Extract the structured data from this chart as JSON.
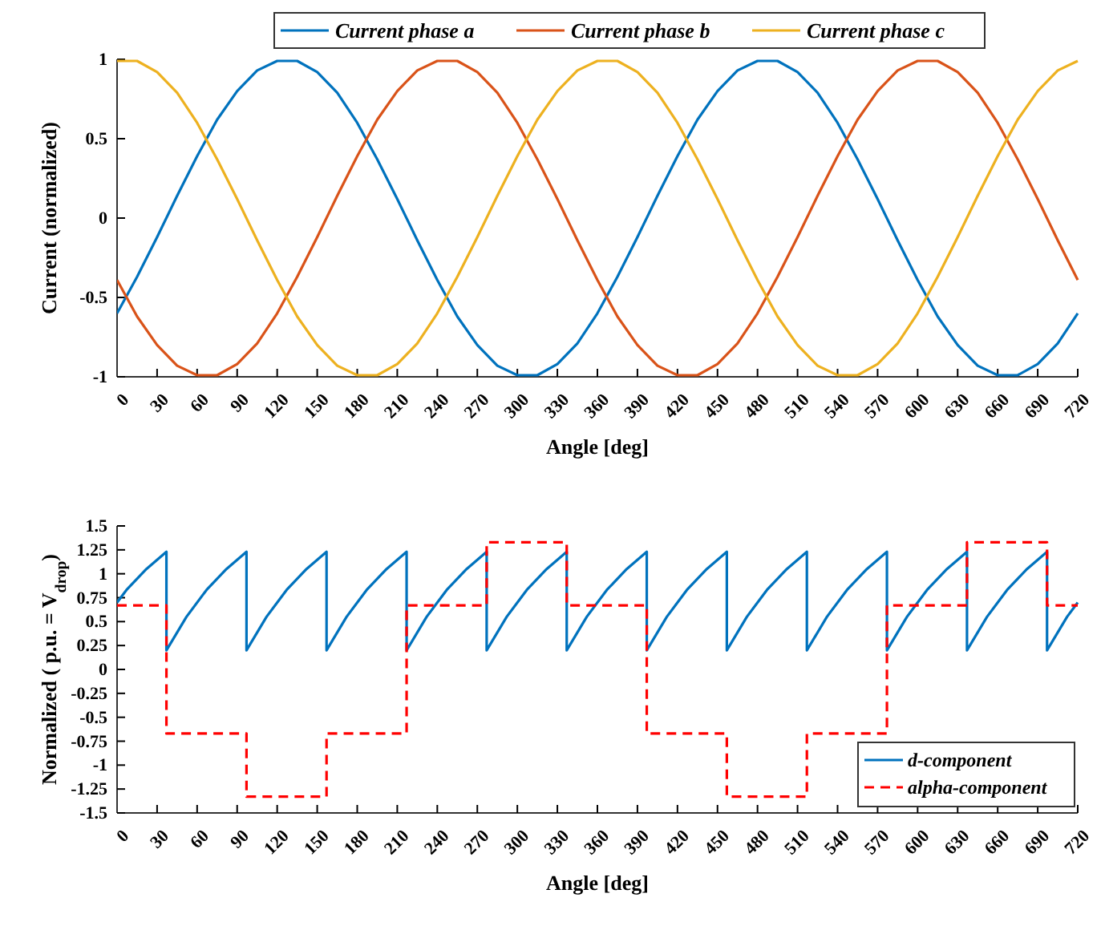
{
  "chart_data": [
    {
      "type": "line",
      "xlabel": "Angle [deg]",
      "ylabel": "Current (normalized)",
      "legend": "top",
      "line_style": "solid",
      "marker": "none",
      "grid": false,
      "x": [
        0,
        15,
        30,
        45,
        60,
        75,
        90,
        105,
        120,
        135,
        150,
        165,
        180,
        195,
        210,
        225,
        240,
        255,
        270,
        285,
        300,
        315,
        330,
        345,
        360,
        375,
        390,
        405,
        420,
        435,
        450,
        465,
        480,
        495,
        510,
        525,
        540,
        555,
        570,
        585,
        600,
        615,
        630,
        645,
        660,
        675,
        690,
        705,
        720
      ],
      "xlim": [
        0,
        720
      ],
      "xticks": [
        0,
        30,
        60,
        90,
        120,
        150,
        180,
        210,
        240,
        270,
        300,
        330,
        360,
        390,
        420,
        450,
        480,
        510,
        540,
        570,
        600,
        630,
        660,
        690,
        720
      ],
      "ylim": [
        -1,
        1
      ],
      "yticks": [
        -1,
        -0.5,
        0,
        0.5,
        1
      ],
      "series": [
        {
          "name": "Current phase a",
          "color": "#0072bd",
          "values": [
            -0.6,
            -0.37,
            -0.12,
            0.14,
            0.39,
            0.62,
            0.8,
            0.93,
            0.99,
            0.99,
            0.92,
            0.79,
            0.6,
            0.37,
            0.12,
            -0.14,
            -0.39,
            -0.62,
            -0.8,
            -0.93,
            -0.99,
            -0.99,
            -0.92,
            -0.79,
            -0.6,
            -0.37,
            -0.12,
            0.14,
            0.39,
            0.62,
            0.8,
            0.93,
            0.99,
            0.99,
            0.92,
            0.79,
            0.6,
            0.37,
            0.12,
            -0.14,
            -0.39,
            -0.62,
            -0.8,
            -0.93,
            -0.99,
            -0.99,
            -0.92,
            -0.79,
            -0.6
          ]
        },
        {
          "name": "Current phase b",
          "color": "#d95319",
          "values": [
            -0.39,
            -0.62,
            -0.8,
            -0.93,
            -0.99,
            -0.99,
            -0.92,
            -0.79,
            -0.6,
            -0.37,
            -0.12,
            0.14,
            0.39,
            0.62,
            0.8,
            0.93,
            0.99,
            0.99,
            0.92,
            0.79,
            0.6,
            0.37,
            0.12,
            -0.14,
            -0.39,
            -0.62,
            -0.8,
            -0.93,
            -0.99,
            -0.99,
            -0.92,
            -0.79,
            -0.6,
            -0.37,
            -0.12,
            0.14,
            0.39,
            0.62,
            0.8,
            0.93,
            0.99,
            0.99,
            0.92,
            0.79,
            0.6,
            0.37,
            0.12,
            -0.14,
            -0.39
          ]
        },
        {
          "name": "Current phase c",
          "color": "#edb120",
          "values": [
            0.99,
            0.99,
            0.92,
            0.79,
            0.6,
            0.37,
            0.12,
            -0.14,
            -0.39,
            -0.62,
            -0.8,
            -0.93,
            -0.99,
            -0.99,
            -0.92,
            -0.79,
            -0.6,
            -0.37,
            -0.12,
            0.14,
            0.39,
            0.62,
            0.8,
            0.93,
            0.99,
            0.99,
            0.92,
            0.79,
            0.6,
            0.37,
            0.12,
            -0.14,
            -0.39,
            -0.62,
            -0.8,
            -0.93,
            -0.99,
            -0.99,
            -0.92,
            -0.79,
            -0.6,
            -0.37,
            -0.12,
            0.14,
            0.39,
            0.62,
            0.8,
            0.93,
            0.99
          ]
        }
      ]
    },
    {
      "type": "line",
      "xlabel": "Angle [deg]",
      "ylabel": "Normalized ( p.u. = V$_{drop}$)",
      "legend": "bottom right",
      "marker": "none",
      "grid": false,
      "xlim": [
        0,
        720
      ],
      "xticks": [
        0,
        30,
        60,
        90,
        120,
        150,
        180,
        210,
        240,
        270,
        300,
        330,
        360,
        390,
        420,
        450,
        480,
        510,
        540,
        570,
        600,
        630,
        660,
        690,
        720
      ],
      "ylim": [
        -1.5,
        1.5
      ],
      "yticks": [
        -1.5,
        -1.25,
        -1,
        -0.75,
        -0.5,
        -0.25,
        0,
        0.25,
        0.5,
        0.75,
        1,
        1.25,
        1.5
      ],
      "series": [
        {
          "name": "d-component",
          "color": "#0072bd",
          "line_style": "solid",
          "x": [
            0,
            7,
            22,
            37,
            37,
            52,
            67,
            82,
            97,
            97,
            112,
            127,
            142,
            157,
            157,
            172,
            187,
            202,
            217,
            217,
            232,
            247,
            262,
            277,
            277,
            292,
            307,
            322,
            337,
            337,
            352,
            367,
            382,
            397,
            397,
            412,
            427,
            442,
            457,
            457,
            472,
            487,
            502,
            517,
            517,
            532,
            547,
            562,
            577,
            577,
            592,
            607,
            622,
            637,
            637,
            652,
            667,
            682,
            697,
            697,
            712,
            720
          ],
          "values": [
            0.7,
            0.83,
            1.05,
            1.23,
            0.2,
            0.55,
            0.83,
            1.05,
            1.23,
            0.2,
            0.55,
            0.83,
            1.05,
            1.23,
            0.2,
            0.55,
            0.83,
            1.05,
            1.23,
            0.2,
            0.55,
            0.83,
            1.05,
            1.23,
            0.2,
            0.55,
            0.83,
            1.05,
            1.23,
            0.2,
            0.55,
            0.83,
            1.05,
            1.23,
            0.2,
            0.55,
            0.83,
            1.05,
            1.23,
            0.2,
            0.55,
            0.83,
            1.05,
            1.23,
            0.2,
            0.55,
            0.83,
            1.05,
            1.23,
            0.2,
            0.55,
            0.83,
            1.05,
            1.23,
            0.2,
            0.55,
            0.83,
            1.05,
            1.23,
            0.2,
            0.55,
            0.7
          ]
        },
        {
          "name": "alpha-component",
          "color": "#ff0000",
          "type": "step",
          "line_style": "dashed",
          "x": [
            0,
            37,
            97,
            157,
            217,
            277,
            337,
            397,
            457,
            517,
            577,
            637,
            697,
            720
          ],
          "values": [
            0.67,
            -0.67,
            -1.33,
            -0.67,
            0.67,
            1.33,
            0.67,
            -0.67,
            -1.33,
            -0.67,
            0.67,
            1.33,
            0.67,
            0.67
          ]
        }
      ]
    }
  ]
}
